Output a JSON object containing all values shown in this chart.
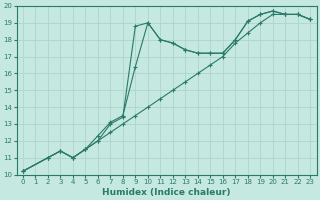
{
  "xlabel": "Humidex (Indice chaleur)",
  "xlim": [
    -0.5,
    23.5
  ],
  "ylim": [
    10,
    20
  ],
  "xticks": [
    0,
    1,
    2,
    3,
    4,
    5,
    6,
    7,
    8,
    9,
    10,
    11,
    12,
    13,
    14,
    15,
    16,
    17,
    18,
    19,
    20,
    21,
    22,
    23
  ],
  "yticks": [
    10,
    11,
    12,
    13,
    14,
    15,
    16,
    17,
    18,
    19,
    20
  ],
  "bg_color": "#c5e8e0",
  "grid_color": "#aed4cc",
  "line_color": "#2a7a6a",
  "line1_x": [
    0,
    2,
    3,
    4,
    5,
    6,
    7,
    8,
    9,
    10,
    11,
    12,
    13,
    14,
    15,
    16,
    17,
    18,
    19,
    20,
    21,
    22,
    23
  ],
  "line1_y": [
    10.2,
    11.0,
    11.4,
    11.0,
    11.5,
    12.0,
    13.0,
    13.4,
    18.8,
    19.0,
    18.0,
    17.8,
    17.4,
    17.2,
    17.2,
    17.2,
    18.0,
    19.1,
    19.5,
    19.7,
    19.5,
    19.5,
    19.2
  ],
  "line2_x": [
    0,
    2,
    3,
    4,
    5,
    6,
    7,
    8,
    9,
    10,
    11,
    12,
    13,
    14,
    15,
    16,
    17,
    18,
    19,
    20,
    21,
    22,
    23
  ],
  "line2_y": [
    10.2,
    11.0,
    11.4,
    11.0,
    11.5,
    12.3,
    13.1,
    13.5,
    16.4,
    19.0,
    18.0,
    17.8,
    17.4,
    17.2,
    17.2,
    17.2,
    18.0,
    19.1,
    19.5,
    19.7,
    19.5,
    19.5,
    19.2
  ],
  "line3_x": [
    0,
    2,
    3,
    4,
    5,
    6,
    7,
    8,
    9,
    10,
    11,
    12,
    13,
    14,
    15,
    16,
    17,
    18,
    19,
    20,
    21,
    22,
    23
  ],
  "line3_y": [
    10.2,
    11.0,
    11.4,
    11.0,
    11.5,
    12.0,
    12.5,
    13.0,
    13.5,
    14.0,
    14.5,
    15.0,
    15.5,
    16.0,
    16.5,
    17.0,
    17.8,
    18.4,
    19.0,
    19.5,
    19.5,
    19.5,
    19.2
  ],
  "xlabel_fontsize": 6.5,
  "tick_fontsize": 5,
  "marker_size": 3,
  "linewidth": 0.8
}
